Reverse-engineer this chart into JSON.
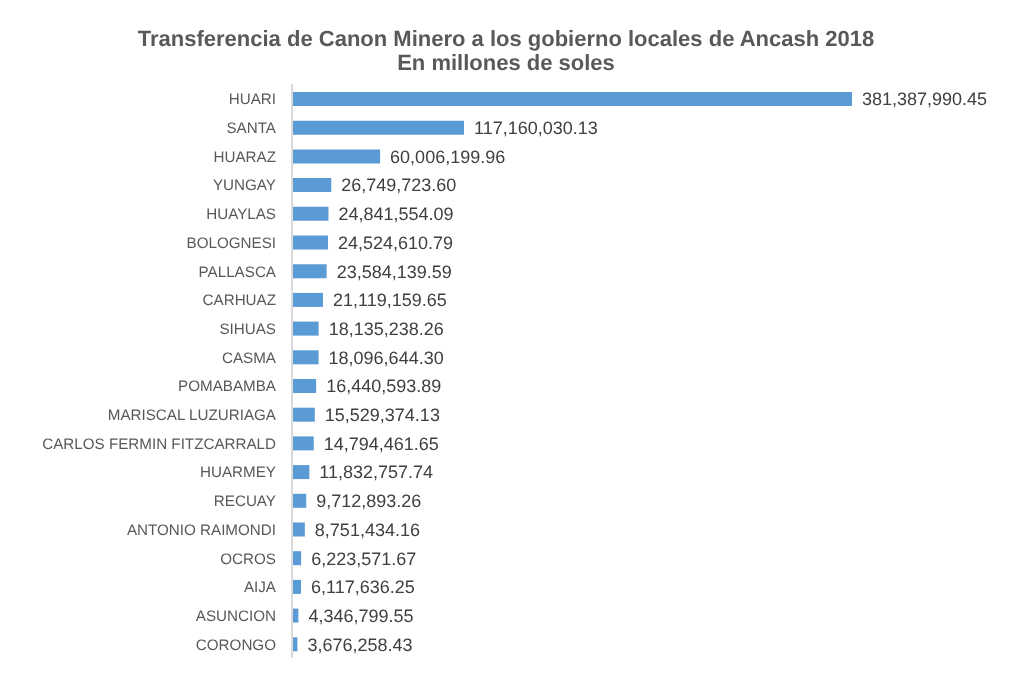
{
  "chart_data": {
    "type": "bar",
    "orientation": "horizontal",
    "title": "Transferencia de Canon  Minero a los gobierno locales de Ancash 2018",
    "subtitle": "En millones de soles",
    "categories": [
      "HUARI",
      "SANTA",
      "HUARAZ",
      "YUNGAY",
      "HUAYLAS",
      "BOLOGNESI",
      "PALLASCA",
      "CARHUAZ",
      "SIHUAS",
      "CASMA",
      "POMABAMBA",
      "MARISCAL LUZURIAGA",
      "CARLOS FERMIN FITZCARRALD",
      "HUARMEY",
      "RECUAY",
      "ANTONIO RAIMONDI",
      "OCROS",
      "AIJA",
      "ASUNCION",
      "CORONGO"
    ],
    "values": [
      381387990.45,
      117160030.13,
      60006199.96,
      26749723.6,
      24841554.09,
      24524610.79,
      23584139.59,
      21119159.65,
      18135238.26,
      18096644.3,
      16440593.89,
      15529374.13,
      14794461.65,
      11832757.74,
      9712893.26,
      8751434.16,
      6223571.67,
      6117636.25,
      4346799.55,
      3676258.43
    ],
    "value_labels": [
      "381,387,990.45",
      "117,160,030.13",
      "60,006,199.96",
      "26,749,723.60",
      "24,841,554.09",
      "24,524,610.79",
      "23,584,139.59",
      "21,119,159.65",
      "18,135,238.26",
      "18,096,644.30",
      "16,440,593.89",
      "15,529,374.13",
      "14,794,461.65",
      "11,832,757.74",
      "9,712,893.26",
      "8,751,434.16",
      "6,223,571.67",
      "6,117,636.25",
      "4,346,799.55",
      "3,676,258.43"
    ],
    "color": "#5b9bd5"
  }
}
